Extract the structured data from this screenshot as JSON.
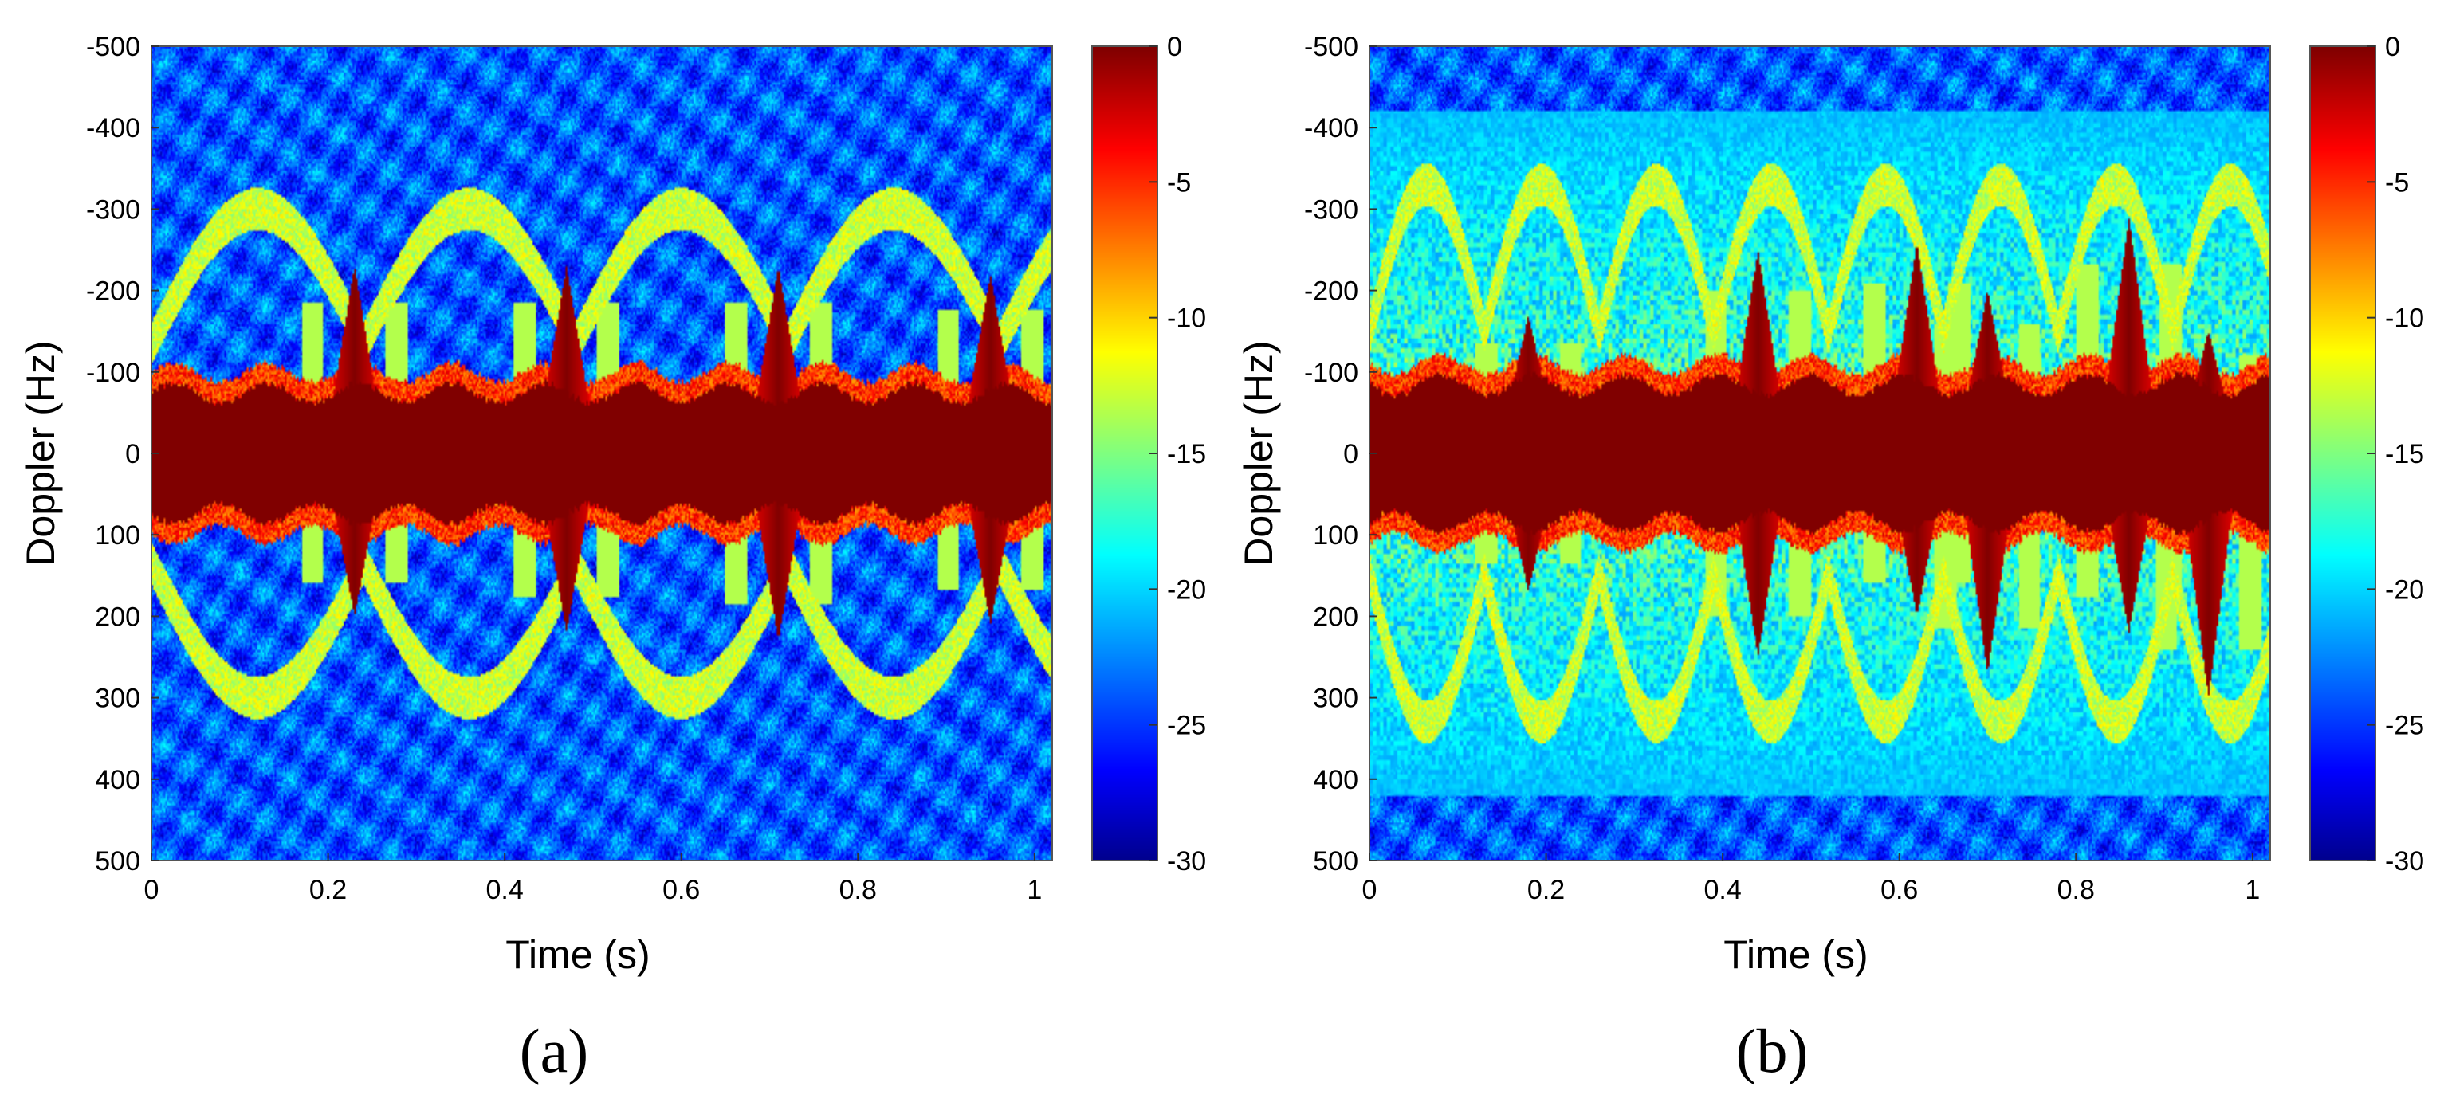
{
  "colormap": {
    "name": "jet",
    "stops": [
      "#00008f",
      "#0000ff",
      "#00ffff",
      "#ffff00",
      "#ff0000",
      "#800000"
    ]
  },
  "chart_data": [
    {
      "type": "heatmap",
      "caption": "(a)",
      "title": "",
      "xlabel": "Time (s)",
      "ylabel": "Doppler (Hz)",
      "xlim": [
        0,
        1.02
      ],
      "ylim": [
        -500,
        500
      ],
      "y_direction": "reversed (-500 at top, 500 at bottom)",
      "x_ticks": [
        "0",
        "0.2",
        "0.4",
        "0.6",
        "0.8",
        "1"
      ],
      "x_tick_values": [
        0,
        0.2,
        0.4,
        0.6,
        0.8,
        1.0
      ],
      "y_ticks": [
        "-500",
        "-400",
        "-300",
        "-200",
        "-100",
        "0",
        "100",
        "200",
        "300",
        "400",
        "500"
      ],
      "y_tick_values": [
        -500,
        -400,
        -300,
        -200,
        -100,
        0,
        100,
        200,
        300,
        400,
        500
      ],
      "colorbar": {
        "range": [
          -30,
          0
        ],
        "ticks": [
          "0",
          "-5",
          "-10",
          "-15",
          "-20",
          "-25",
          "-30"
        ],
        "tick_values": [
          0,
          -5,
          -10,
          -15,
          -20,
          -25,
          -30
        ]
      },
      "description_values": {
        "zero_doppler_band_halfwidth_hz": 70,
        "periodic_bursts": [
          {
            "time": 0.23,
            "negative_peak_hz": -230,
            "positive_peak_hz": 200
          },
          {
            "time": 0.47,
            "negative_peak_hz": -230,
            "positive_peak_hz": 220
          },
          {
            "time": 0.71,
            "negative_peak_hz": -230,
            "positive_peak_hz": 230
          },
          {
            "time": 0.95,
            "negative_peak_hz": -220,
            "positive_peak_hz": 210
          }
        ],
        "envelope_amplitude_hz": 300,
        "envelope_period_s": 0.24
      }
    },
    {
      "type": "heatmap",
      "caption": "(b)",
      "title": "",
      "xlabel": "Time (s)",
      "ylabel": "Doppler (Hz)",
      "xlim": [
        0,
        1.02
      ],
      "ylim": [
        -500,
        500
      ],
      "y_direction": "reversed (-500 at top, 500 at bottom)",
      "x_ticks": [
        "0",
        "0.2",
        "0.4",
        "0.6",
        "0.8",
        "1"
      ],
      "x_tick_values": [
        0,
        0.2,
        0.4,
        0.6,
        0.8,
        1.0
      ],
      "y_ticks": [
        "-500",
        "-400",
        "-300",
        "-200",
        "-100",
        "0",
        "100",
        "200",
        "300",
        "400",
        "500"
      ],
      "y_tick_values": [
        -500,
        -400,
        -300,
        -200,
        -100,
        0,
        100,
        200,
        300,
        400,
        500
      ],
      "colorbar": {
        "range": [
          -30,
          0
        ],
        "ticks": [
          "0",
          "-5",
          "-10",
          "-15",
          "-20",
          "-25",
          "-30"
        ],
        "tick_values": [
          0,
          -5,
          -10,
          -15,
          -20,
          -25,
          -30
        ]
      },
      "description_values": {
        "zero_doppler_band_halfwidth_hz": 80,
        "periodic_bursts": [
          {
            "time": 0.18,
            "negative_peak_hz": -170,
            "positive_peak_hz": 170
          },
          {
            "time": 0.44,
            "negative_peak_hz": -250,
            "positive_peak_hz": 250
          },
          {
            "time": 0.62,
            "negative_peak_hz": -260,
            "positive_peak_hz": 200
          },
          {
            "time": 0.7,
            "negative_peak_hz": -200,
            "positive_peak_hz": 270
          },
          {
            "time": 0.86,
            "negative_peak_hz": -290,
            "positive_peak_hz": 220
          },
          {
            "time": 0.95,
            "negative_peak_hz": -150,
            "positive_peak_hz": 300
          }
        ],
        "envelope_amplitude_hz": 330,
        "envelope_period_s": 0.13
      }
    }
  ]
}
